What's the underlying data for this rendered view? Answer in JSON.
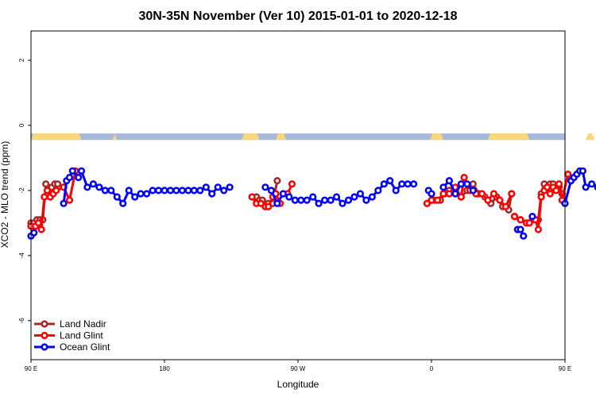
{
  "chart_data": {
    "type": "line",
    "title": "30N-35N November (Ver 10)   2015-01-01 to 2020-12-18",
    "xlabel": "Longitude",
    "ylabel": "XCO2 - MLO trend (ppm)",
    "xlim": [
      90,
      450
    ],
    "ylim": [
      -7.2,
      2.9
    ],
    "x_ticks": [
      {
        "value": 90,
        "label": "90 E"
      },
      {
        "value": 180,
        "label": "180"
      },
      {
        "value": 270,
        "label": "90 W"
      },
      {
        "value": 360,
        "label": "0"
      },
      {
        "value": 450,
        "label": "90 E"
      },
      {
        "value": 540,
        "label": "180"
      }
    ],
    "y_ticks": [
      2,
      0,
      -2,
      -4,
      -6
    ],
    "grid": false,
    "legend_position": "bottom-left",
    "land_ocean_strip": {
      "y_top": -0.25,
      "y_bottom": -0.45,
      "ocean_color": "#a6b9d9",
      "land_color": "#fad77a",
      "land_segments": [
        [
          90,
          124
        ],
        [
          145,
          148
        ],
        [
          232,
          244
        ],
        [
          255,
          262
        ],
        [
          359,
          368
        ],
        [
          398,
          426
        ],
        [
          464,
          470
        ]
      ]
    },
    "series": [
      {
        "name": "Land Nadir",
        "color": "#a52a2a",
        "segments": [
          [
            [
              90,
              -3.0
            ],
            [
              92,
              -3.0
            ],
            [
              94,
              -2.9
            ],
            [
              96,
              -2.9
            ],
            [
              98,
              -2.9
            ],
            [
              100,
              -1.8
            ],
            [
              102,
              -2.0
            ],
            [
              104,
              -1.9
            ],
            [
              106,
              -1.8
            ],
            [
              108,
              -1.8
            ],
            [
              112,
              -1.9
            ]
          ],
          [
            [
              242,
              -2.2
            ],
            [
              244,
              -2.3
            ],
            [
              246,
              -2.3
            ],
            [
              250,
              -2.4
            ]
          ],
          [
            [
              253,
              -2.4
            ],
            [
              256,
              -1.7
            ]
          ],
          [
            [
              357,
              -2.4
            ],
            [
              362,
              -2.3
            ],
            [
              366,
              -2.3
            ],
            [
              369,
              -2.1
            ],
            [
              372,
              -2.0
            ],
            [
              376,
              -2.0
            ],
            [
              380,
              -2.2
            ],
            [
              384,
              -2.0
            ],
            [
              388,
              -1.8
            ],
            [
              392,
              -2.1
            ],
            [
              396,
              -2.2
            ],
            [
              400,
              -2.4
            ],
            [
              404,
              -2.2
            ],
            [
              408,
              -2.5
            ],
            [
              412,
              -2.6
            ],
            [
              414,
              -2.1
            ]
          ],
          [
            [
              416,
              -2.8
            ],
            [
              420,
              -2.9
            ],
            [
              424,
              -3.0
            ],
            [
              428,
              -2.9
            ]
          ],
          [
            [
              432,
              -2.9
            ],
            [
              434,
              -2.1
            ],
            [
              436,
              -1.8
            ],
            [
              438,
              -1.9
            ],
            [
              440,
              -1.8
            ],
            [
              442,
              -1.8
            ],
            [
              446,
              -1.9
            ],
            [
              448,
              -2.1
            ]
          ]
        ]
      },
      {
        "name": "Land Glint",
        "color": "#ff0000",
        "segments": [
          [
            [
              90,
              -3.1
            ],
            [
              93,
              -3.1
            ],
            [
              95,
              -3.0
            ],
            [
              97,
              -3.2
            ],
            [
              99,
              -2.2
            ],
            [
              101,
              -2.0
            ],
            [
              103,
              -2.2
            ],
            [
              105,
              -2.1
            ],
            [
              107,
              -2.0
            ],
            [
              112,
              -1.9
            ],
            [
              116,
              -2.3
            ],
            [
              120,
              -1.4
            ]
          ],
          [
            [
              239,
              -2.2
            ],
            [
              242,
              -2.4
            ],
            [
              245,
              -2.4
            ],
            [
              248,
              -2.5
            ],
            [
              250,
              -2.5
            ],
            [
              253,
              -2.2
            ],
            [
              255,
              -2.1
            ],
            [
              258,
              -2.4
            ]
          ],
          [
            [
              263,
              -2.1
            ],
            [
              266,
              -1.8
            ]
          ],
          [
            [
              357,
              -2.4
            ],
            [
              360,
              -2.3
            ],
            [
              364,
              -2.3
            ],
            [
              368,
              -2.1
            ],
            [
              372,
              -2.1
            ],
            [
              376,
              -1.9
            ],
            [
              380,
              -2.2
            ],
            [
              382,
              -1.6
            ],
            [
              386,
              -2.0
            ],
            [
              390,
              -2.1
            ],
            [
              394,
              -2.1
            ],
            [
              398,
              -2.3
            ],
            [
              402,
              -2.1
            ],
            [
              406,
              -2.3
            ],
            [
              410,
              -2.5
            ],
            [
              414,
              -2.1
            ]
          ],
          [
            [
              416,
              -2.8
            ],
            [
              420,
              -2.9
            ],
            [
              424,
              -3.0
            ],
            [
              426,
              -3.0
            ]
          ],
          [
            [
              430,
              -2.9
            ],
            [
              432,
              -3.2
            ],
            [
              434,
              -2.2
            ],
            [
              436,
              -2.0
            ],
            [
              438,
              -1.9
            ],
            [
              440,
              -2.1
            ],
            [
              442,
              -1.9
            ],
            [
              444,
              -2.0
            ],
            [
              446,
              -1.8
            ],
            [
              448,
              -2.3
            ],
            [
              452,
              -1.5
            ]
          ]
        ]
      },
      {
        "name": "Ocean Glint",
        "color": "#0000ff",
        "segments": [
          [
            [
              90,
              -3.4
            ],
            [
              92,
              -3.3
            ]
          ],
          [
            [
              112,
              -2.4
            ],
            [
              114,
              -1.7
            ],
            [
              116,
              -1.6
            ],
            [
              118,
              -1.4
            ],
            [
              122,
              -1.6
            ],
            [
              124,
              -1.4
            ],
            [
              128,
              -1.9
            ],
            [
              132,
              -1.8
            ],
            [
              136,
              -1.9
            ],
            [
              140,
              -2.0
            ],
            [
              144,
              -2.0
            ],
            [
              148,
              -2.2
            ],
            [
              152,
              -2.4
            ],
            [
              156,
              -2.0
            ],
            [
              160,
              -2.2
            ],
            [
              164,
              -2.1
            ],
            [
              168,
              -2.1
            ],
            [
              172,
              -2.0
            ],
            [
              176,
              -2.0
            ],
            [
              180,
              -2.0
            ],
            [
              184,
              -2.0
            ],
            [
              188,
              -2.0
            ],
            [
              192,
              -2.0
            ],
            [
              196,
              -2.0
            ],
            [
              200,
              -2.0
            ],
            [
              204,
              -2.0
            ],
            [
              208,
              -1.9
            ],
            [
              212,
              -2.1
            ],
            [
              216,
              -1.9
            ],
            [
              220,
              -2.0
            ],
            [
              224,
              -1.9
            ]
          ],
          [
            [
              248,
              -1.9
            ],
            [
              252,
              -2.0
            ],
            [
              256,
              -2.4
            ],
            [
              260,
              -2.1
            ],
            [
              264,
              -2.2
            ],
            [
              268,
              -2.3
            ],
            [
              272,
              -2.3
            ],
            [
              276,
              -2.3
            ],
            [
              280,
              -2.2
            ],
            [
              284,
              -2.4
            ],
            [
              288,
              -2.3
            ],
            [
              292,
              -2.3
            ],
            [
              296,
              -2.2
            ],
            [
              300,
              -2.4
            ],
            [
              304,
              -2.3
            ],
            [
              308,
              -2.2
            ],
            [
              312,
              -2.1
            ],
            [
              316,
              -2.3
            ],
            [
              320,
              -2.2
            ],
            [
              324,
              -2.0
            ],
            [
              328,
              -1.8
            ],
            [
              332,
              -1.7
            ],
            [
              336,
              -2.0
            ],
            [
              340,
              -1.8
            ],
            [
              344,
              -1.8
            ],
            [
              348,
              -1.8
            ]
          ],
          [
            [
              358,
              -2.0
            ],
            [
              360,
              -2.1
            ]
          ],
          [
            [
              368,
              -1.9
            ],
            [
              372,
              -1.7
            ],
            [
              376,
              -2.1
            ],
            [
              380,
              -1.8
            ],
            [
              384,
              -1.8
            ],
            [
              388,
              -2.0
            ]
          ],
          [
            [
              418,
              -3.2
            ],
            [
              420,
              -3.2
            ],
            [
              422,
              -3.4
            ]
          ],
          [
            [
              428,
              -2.8
            ]
          ],
          [
            [
              450,
              -2.4
            ],
            [
              454,
              -1.7
            ],
            [
              456,
              -1.6
            ],
            [
              458,
              -1.5
            ],
            [
              460,
              -1.4
            ],
            [
              462,
              -1.4
            ],
            [
              464,
              -1.9
            ],
            [
              468,
              -1.8
            ],
            [
              472,
              -1.9
            ],
            [
              476,
              -2.0
            ],
            [
              480,
              -2.0
            ],
            [
              484,
              -2.0
            ],
            [
              488,
              -2.2
            ],
            [
              492,
              -2.4
            ],
            [
              496,
              -2.0
            ]
          ]
        ]
      }
    ]
  }
}
